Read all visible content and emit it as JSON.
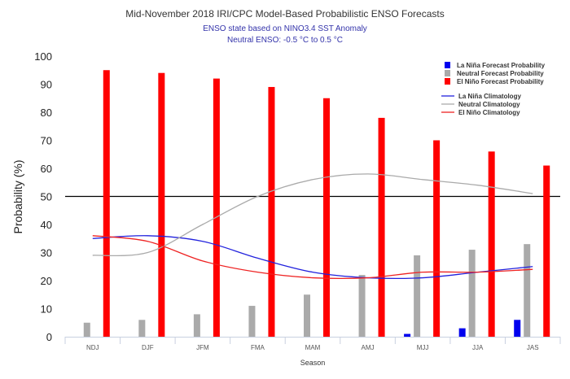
{
  "chart_data": {
    "type": "bar",
    "title": "Mid-November 2018 IRI/CPC Model-Based Probabilistic ENSO Forecasts",
    "subtitle_lines": [
      "ENSO state based on NINO3.4 SST Anomaly",
      "Neutral ENSO: -0.5 °C to 0.5 °C"
    ],
    "xlabel": "Season",
    "ylabel": "Probability (%)",
    "ylim": [
      0,
      100
    ],
    "yticks": [
      0,
      10,
      20,
      30,
      40,
      50,
      60,
      70,
      80,
      90,
      100
    ],
    "categories": [
      "NDJ",
      "DJF",
      "JFM",
      "FMA",
      "MAM",
      "AMJ",
      "MJJ",
      "JJA",
      "JAS"
    ],
    "reference_line": 50,
    "legend_position": "top-right",
    "series": [
      {
        "name": "La Niña Forecast Probability",
        "kind": "bar",
        "color": "#0000ee",
        "values": [
          0,
          0,
          0,
          0,
          0,
          0,
          1,
          3,
          6
        ]
      },
      {
        "name": "Neutral Forecast Probability",
        "kind": "bar",
        "color": "#aaaaaa",
        "values": [
          5,
          6,
          8,
          11,
          15,
          22,
          29,
          31,
          33
        ]
      },
      {
        "name": "El Niño Forecast Probability",
        "kind": "bar",
        "color": "#ff0000",
        "values": [
          95,
          94,
          92,
          89,
          85,
          78,
          70,
          66,
          61
        ]
      }
    ],
    "climatology": [
      {
        "name": "La Niña Climatology",
        "kind": "line",
        "color": "#2222dd",
        "values": [
          35,
          36,
          34,
          28,
          23,
          21,
          21,
          23,
          25
        ]
      },
      {
        "name": "Neutral Climatology",
        "kind": "line",
        "color": "#aaaaaa",
        "values": [
          29,
          30,
          40,
          50,
          56,
          58,
          56,
          54,
          51
        ]
      },
      {
        "name": "El Niño Climatology",
        "kind": "line",
        "color": "#ee2222",
        "values": [
          36,
          34,
          27,
          23,
          21,
          21,
          23,
          23,
          24
        ]
      }
    ]
  }
}
